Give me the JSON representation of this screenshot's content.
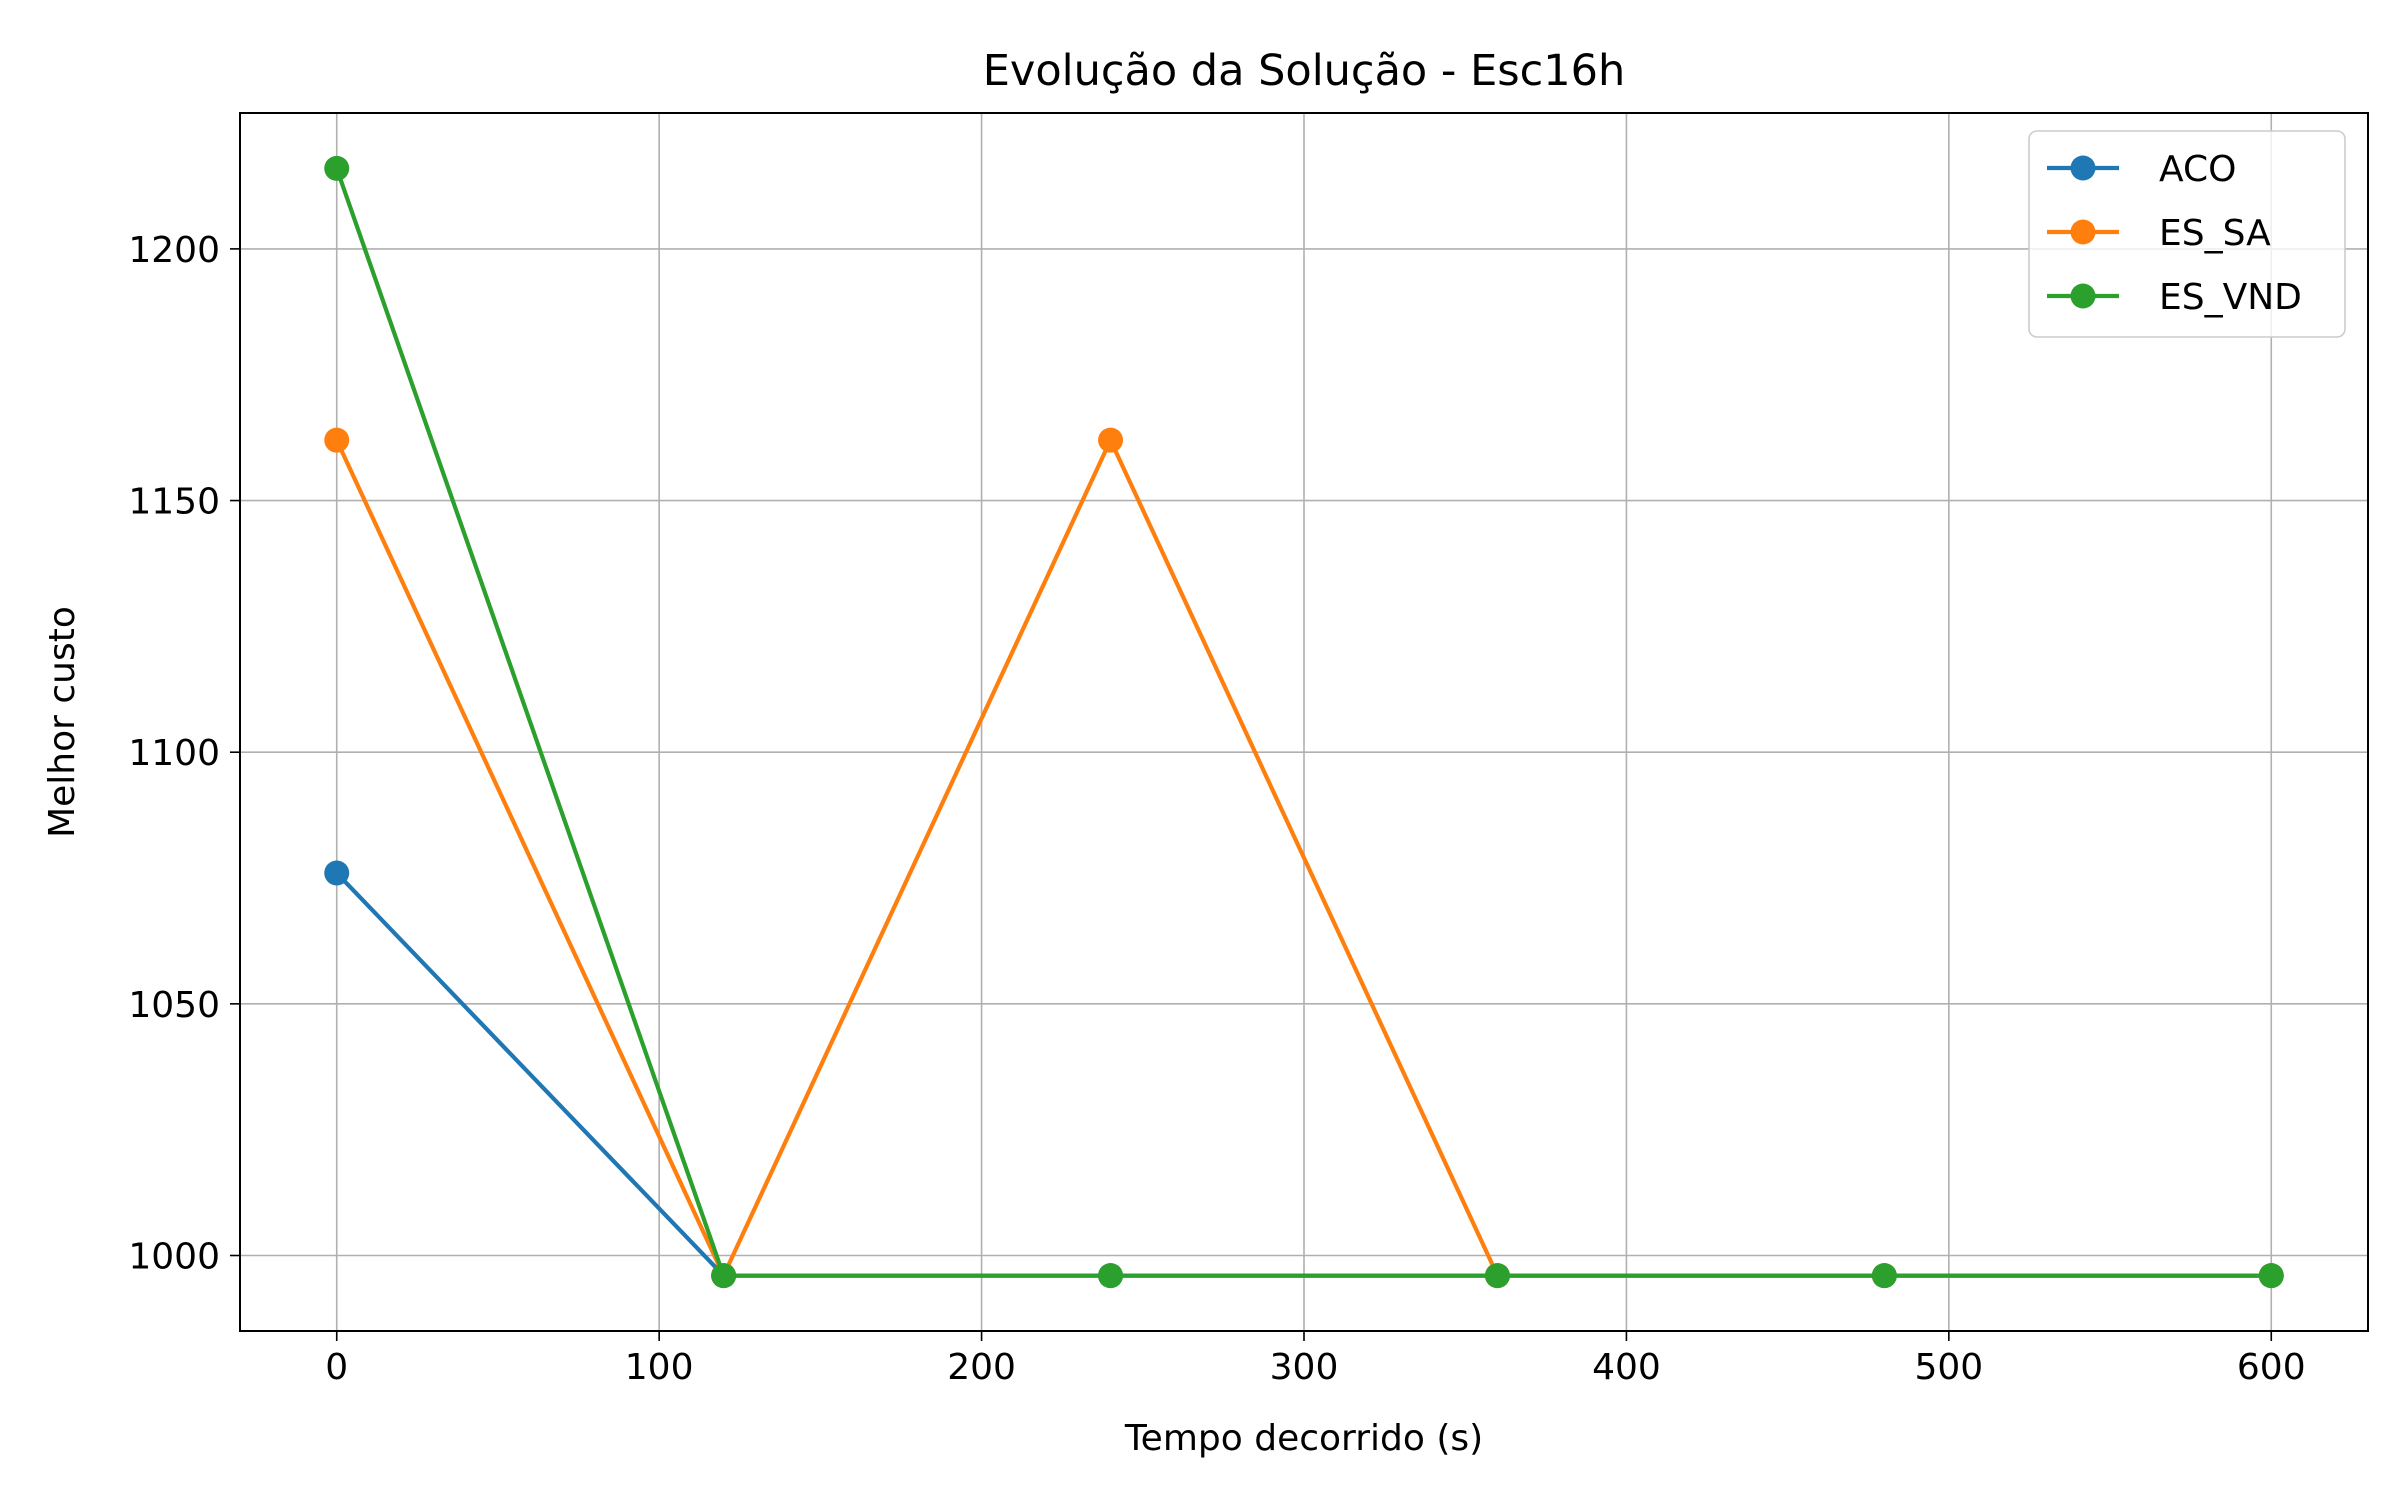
{
  "chart_data": {
    "type": "line",
    "title": "Evolução da Solução - Esc16h",
    "xlabel": "Tempo decorrido (s)",
    "ylabel": "Melhor custo",
    "xlim": [
      -30,
      630
    ],
    "ylim": [
      985,
      1227
    ],
    "xticks": [
      0,
      100,
      200,
      300,
      400,
      500,
      600
    ],
    "yticks": [
      1000,
      1050,
      1100,
      1150,
      1200
    ],
    "grid": true,
    "legend_position": "top-right",
    "series": [
      {
        "name": "ACO",
        "color": "#1f77b4",
        "x": [
          0,
          120,
          240,
          360,
          480,
          600
        ],
        "y": [
          1076,
          996,
          996,
          996,
          996,
          996
        ]
      },
      {
        "name": "ES_SA",
        "color": "#ff7f0e",
        "x": [
          0,
          120,
          240,
          360,
          480,
          600
        ],
        "y": [
          1162,
          996,
          1162,
          996,
          996,
          996
        ]
      },
      {
        "name": "ES_VND",
        "color": "#2ca02c",
        "x": [
          0,
          120,
          240,
          360,
          480,
          600
        ],
        "y": [
          1216,
          996,
          996,
          996,
          996,
          996
        ]
      }
    ]
  }
}
